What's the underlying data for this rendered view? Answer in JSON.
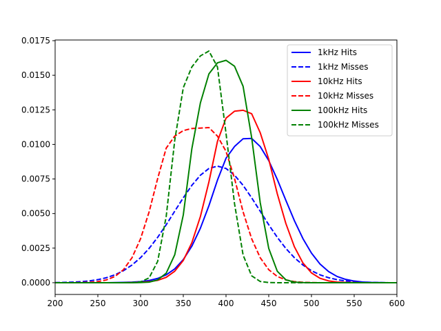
{
  "chart_data": {
    "type": "line",
    "title": "",
    "xlabel": "",
    "ylabel": "",
    "xlim": [
      200,
      600
    ],
    "ylim": [
      -0.00085,
      0.01755
    ],
    "xticks": [
      200,
      250,
      300,
      350,
      400,
      450,
      500,
      550,
      600
    ],
    "xtick_labels": [
      "200",
      "250",
      "300",
      "350",
      "400",
      "450",
      "500",
      "550",
      "600"
    ],
    "yticks": [
      0,
      0.0025,
      0.005,
      0.0075,
      0.01,
      0.0125,
      0.015,
      0.0175
    ],
    "ytick_labels": [
      "0.0000",
      "0.0025",
      "0.0050",
      "0.0075",
      "0.0100",
      "0.0125",
      "0.0150",
      "0.0175"
    ],
    "grid": false,
    "legend_position": "top-right",
    "x": [
      200,
      210,
      220,
      230,
      240,
      250,
      260,
      270,
      280,
      290,
      300,
      310,
      320,
      330,
      340,
      350,
      360,
      370,
      380,
      390,
      400,
      410,
      420,
      430,
      440,
      450,
      460,
      470,
      480,
      490,
      500,
      510,
      520,
      530,
      540,
      550,
      560,
      570,
      580,
      590,
      600
    ],
    "series": [
      {
        "name": "1kHz Hits",
        "color": "#0000ff",
        "dash": false,
        "values": [
          0,
          0,
          0,
          0,
          0,
          0,
          0,
          1e-05,
          2e-05,
          4e-05,
          8e-05,
          0.00016,
          0.00031,
          0.00057,
          0.001,
          0.00167,
          0.00264,
          0.00394,
          0.00557,
          0.00742,
          0.009,
          0.00985,
          0.01041,
          0.01043,
          0.00985,
          0.00883,
          0.00747,
          0.00596,
          0.00449,
          0.00319,
          0.00214,
          0.00135,
          0.00081,
          0.00045,
          0.00024,
          0.00012,
          5e-05,
          2e-05,
          1e-05,
          0,
          0
        ]
      },
      {
        "name": "1kHz Misses",
        "color": "#0000ff",
        "dash": true,
        "values": [
          1e-05,
          2e-05,
          4e-05,
          7e-05,
          0.00013,
          0.00022,
          0.00036,
          0.00057,
          0.00087,
          0.00128,
          0.00181,
          0.00248,
          0.00328,
          0.00419,
          0.00517,
          0.00614,
          0.00704,
          0.00777,
          0.00826,
          0.00843,
          0.00826,
          0.00777,
          0.00704,
          0.00614,
          0.00517,
          0.00419,
          0.00328,
          0.00248,
          0.00181,
          0.00128,
          0.00087,
          0.00057,
          0.00036,
          0.00022,
          0.00013,
          7e-05,
          4e-05,
          2e-05,
          1e-05,
          0,
          0
        ]
      },
      {
        "name": "10kHz Hits",
        "color": "#ff0000",
        "dash": false,
        "values": [
          0,
          0,
          0,
          0,
          0,
          0,
          0,
          0,
          0,
          1e-05,
          3e-05,
          7e-05,
          0.00017,
          0.00039,
          0.00083,
          0.00161,
          0.00289,
          0.00478,
          0.00729,
          0.01022,
          0.0119,
          0.0124,
          0.01247,
          0.01222,
          0.01085,
          0.00893,
          0.00643,
          0.00429,
          0.0026,
          0.00143,
          0.00071,
          0.00032,
          0.00013,
          5e-05,
          2e-05,
          1e-05,
          0,
          0,
          0,
          0,
          0
        ]
      },
      {
        "name": "10kHz Misses",
        "color": "#ff0000",
        "dash": true,
        "values": [
          0,
          0,
          0,
          1e-05,
          3e-05,
          8e-05,
          0.0002,
          0.00045,
          0.00094,
          0.00181,
          0.00318,
          0.00512,
          0.00753,
          0.00973,
          0.0106,
          0.011,
          0.01115,
          0.01118,
          0.01122,
          0.0106,
          0.0095,
          0.00753,
          0.00512,
          0.00318,
          0.00181,
          0.00094,
          0.00045,
          0.0002,
          8e-05,
          3e-05,
          1e-05,
          0,
          0,
          0,
          0,
          0,
          0,
          0,
          0,
          0,
          0
        ]
      },
      {
        "name": "100kHz Hits",
        "color": "#008000",
        "dash": false,
        "values": [
          0,
          0,
          0,
          0,
          0,
          0,
          0,
          0,
          0,
          0,
          1e-05,
          4e-05,
          0.0002,
          0.00069,
          0.00202,
          0.0049,
          0.00968,
          0.013,
          0.0151,
          0.0159,
          0.01608,
          0.01565,
          0.0142,
          0.0105,
          0.0058,
          0.00248,
          0.00083,
          0.00021,
          4e-05,
          1e-05,
          0,
          0,
          0,
          0,
          0,
          0,
          0,
          0,
          0,
          0,
          0
        ]
      },
      {
        "name": "100kHz Misses",
        "color": "#008000",
        "dash": true,
        "values": [
          0,
          0,
          0,
          0,
          0,
          0,
          0,
          0,
          0,
          1e-05,
          6e-05,
          0.00035,
          0.00154,
          0.00479,
          0.0103,
          0.0141,
          0.0156,
          0.0164,
          0.01675,
          0.0156,
          0.0108,
          0.0057,
          0.002,
          0.0005,
          9e-05,
          1e-05,
          0,
          0,
          0,
          0,
          0,
          0,
          0,
          0,
          0,
          0,
          0,
          0,
          0,
          0,
          0
        ]
      }
    ]
  }
}
